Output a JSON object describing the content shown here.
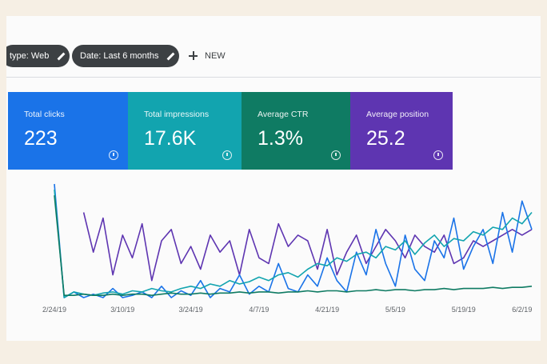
{
  "filters": {
    "type_chip": "type: Web",
    "date_chip": "Date: Last 6 months",
    "new_button": "NEW"
  },
  "metrics": [
    {
      "label": "Total clicks",
      "value": "223",
      "color": "#1a73e8"
    },
    {
      "label": "Total impressions",
      "value": "17.6K",
      "color": "#12a4af"
    },
    {
      "label": "Average CTR",
      "value": "1.3%",
      "color": "#0f7b63"
    },
    {
      "label": "Average position",
      "value": "25.2",
      "color": "#5e35b1"
    }
  ],
  "chart_data": {
    "type": "line",
    "xlim": [
      0,
      49
    ],
    "ylim": [
      0,
      100
    ],
    "xticks": [
      {
        "value": 0,
        "label": "2/24/19"
      },
      {
        "value": 7,
        "label": "3/10/19"
      },
      {
        "value": 14,
        "label": "3/24/19"
      },
      {
        "value": 21,
        "label": "4/7/19"
      },
      {
        "value": 28,
        "label": "4/21/19"
      },
      {
        "value": 35,
        "label": "5/5/19"
      },
      {
        "value": 42,
        "label": "5/19/19"
      },
      {
        "value": 48,
        "label": "6/2/19"
      }
    ],
    "series": [
      {
        "color": "#5e35b1",
        "values": [
          null,
          null,
          null,
          75,
          40,
          70,
          20,
          55,
          35,
          65,
          15,
          50,
          60,
          30,
          45,
          25,
          55,
          40,
          50,
          20,
          60,
          35,
          30,
          65,
          45,
          55,
          50,
          25,
          60,
          20,
          40,
          55,
          30,
          45,
          60,
          50,
          35,
          55,
          45,
          40,
          55,
          30,
          35,
          50,
          45,
          50,
          55,
          60,
          55,
          60
        ]
      },
      {
        "color": "#1a73e8",
        "values": [
          100,
          0,
          5,
          0,
          3,
          0,
          8,
          0,
          2,
          5,
          0,
          10,
          0,
          6,
          2,
          15,
          0,
          8,
          5,
          20,
          3,
          10,
          5,
          30,
          8,
          5,
          20,
          10,
          35,
          15,
          5,
          40,
          20,
          60,
          30,
          10,
          55,
          25,
          15,
          50,
          35,
          70,
          25,
          45,
          60,
          30,
          75,
          40,
          85,
          60
        ]
      },
      {
        "color": "#12a4af",
        "values": [
          95,
          0,
          5,
          3,
          2,
          4,
          5,
          3,
          6,
          5,
          8,
          6,
          5,
          8,
          10,
          8,
          12,
          10,
          15,
          12,
          14,
          18,
          15,
          20,
          22,
          18,
          25,
          30,
          28,
          35,
          32,
          38,
          40,
          35,
          45,
          42,
          50,
          38,
          48,
          55,
          45,
          52,
          50,
          58,
          55,
          62,
          60,
          70,
          65,
          75
        ]
      },
      {
        "color": "#0f7b63",
        "values": [
          90,
          2,
          2,
          3,
          2,
          2,
          3,
          2,
          3,
          3,
          2,
          3,
          4,
          3,
          3,
          4,
          3,
          4,
          4,
          5,
          4,
          5,
          5,
          4,
          5,
          5,
          6,
          5,
          6,
          6,
          5,
          6,
          6,
          7,
          6,
          7,
          7,
          6,
          7,
          7,
          8,
          7,
          8,
          8,
          8,
          9,
          8,
          9,
          9,
          10
        ]
      }
    ]
  }
}
